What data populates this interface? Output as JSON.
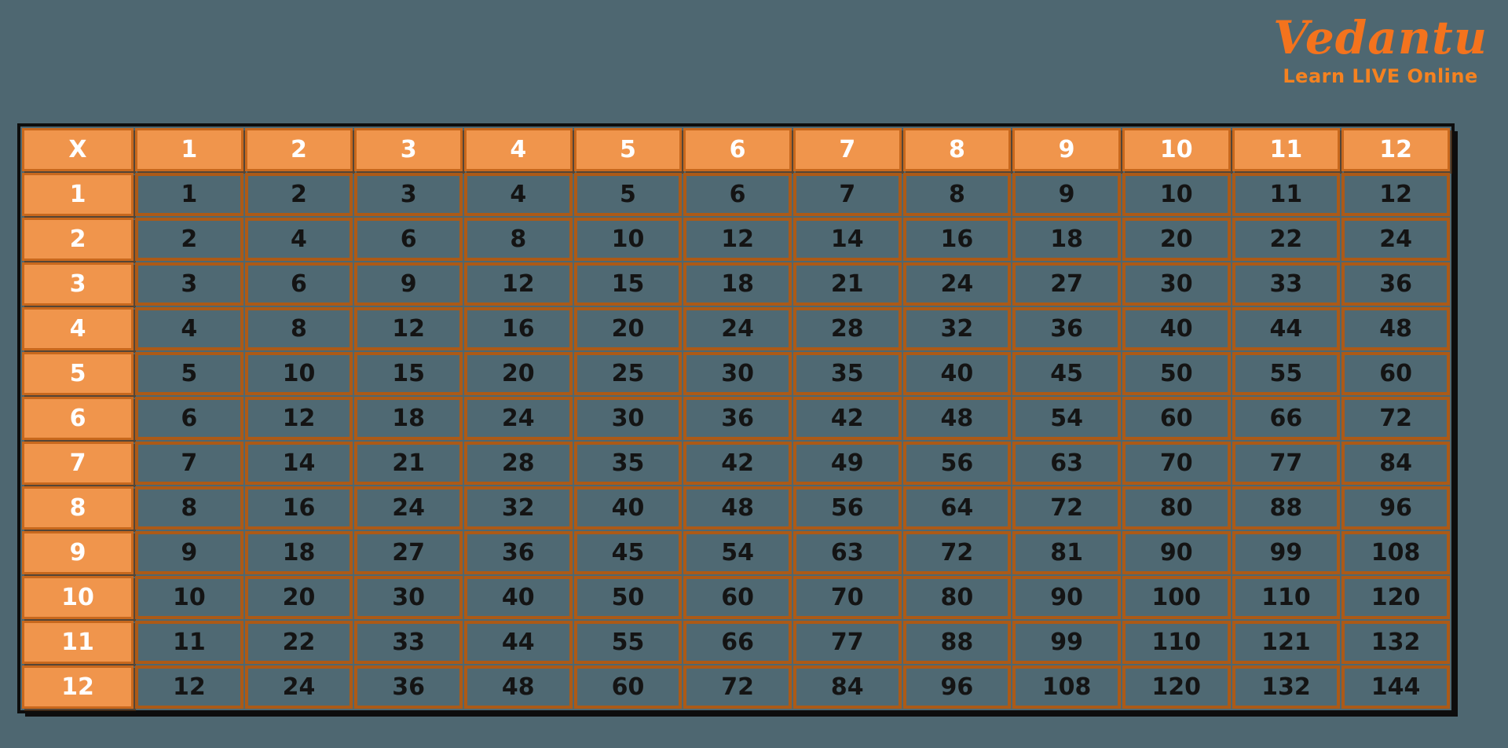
{
  "page": {
    "background": "#4E6771"
  },
  "logo": {
    "brand": "Vedantu",
    "tagline": "Learn LIVE Online",
    "brand_color": "#F4731D",
    "tagline_color": "#F58220"
  },
  "table_style": {
    "frame_border_color": "#0D0D0D",
    "header_fill": "#F0954C",
    "header_border": "#C8681D",
    "header_text_color": "#FFFFFF",
    "cell_fill": "#4F6973",
    "cell_border": "#AC5A17",
    "cell_text_color": "#141414"
  },
  "chart_data": {
    "type": "table",
    "corner_label": "X",
    "column_headers": [
      "1",
      "2",
      "3",
      "4",
      "5",
      "6",
      "7",
      "8",
      "9",
      "10",
      "11",
      "12"
    ],
    "row_headers": [
      "1",
      "2",
      "3",
      "4",
      "5",
      "6",
      "7",
      "8",
      "9",
      "10",
      "11",
      "12"
    ],
    "rows": [
      [
        1,
        2,
        3,
        4,
        5,
        6,
        7,
        8,
        9,
        10,
        11,
        12
      ],
      [
        2,
        4,
        6,
        8,
        10,
        12,
        14,
        16,
        18,
        20,
        22,
        24
      ],
      [
        3,
        6,
        9,
        12,
        15,
        18,
        21,
        24,
        27,
        30,
        33,
        36
      ],
      [
        4,
        8,
        12,
        16,
        20,
        24,
        28,
        32,
        36,
        40,
        44,
        48
      ],
      [
        5,
        10,
        15,
        20,
        25,
        30,
        35,
        40,
        45,
        50,
        55,
        60
      ],
      [
        6,
        12,
        18,
        24,
        30,
        36,
        42,
        48,
        54,
        60,
        66,
        72
      ],
      [
        7,
        14,
        21,
        28,
        35,
        42,
        49,
        56,
        63,
        70,
        77,
        84
      ],
      [
        8,
        16,
        24,
        32,
        40,
        48,
        56,
        64,
        72,
        80,
        88,
        96
      ],
      [
        9,
        18,
        27,
        36,
        45,
        54,
        63,
        72,
        81,
        90,
        99,
        108
      ],
      [
        10,
        20,
        30,
        40,
        50,
        60,
        70,
        80,
        90,
        100,
        110,
        120
      ],
      [
        11,
        22,
        33,
        44,
        55,
        66,
        77,
        88,
        99,
        110,
        121,
        132
      ],
      [
        12,
        24,
        36,
        48,
        60,
        72,
        84,
        96,
        108,
        120,
        132,
        144
      ]
    ]
  }
}
